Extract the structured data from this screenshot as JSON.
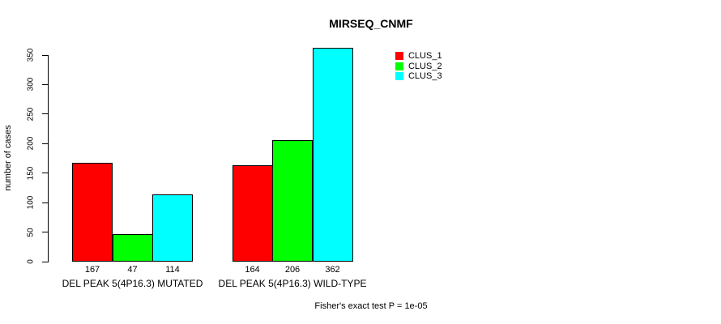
{
  "chart_data": {
    "type": "bar",
    "title": "MIRSEQ_CNMF",
    "xlabel": "",
    "ylabel": "number of cases",
    "ylim": [
      0,
      350
    ],
    "yticks": [
      0,
      50,
      100,
      150,
      200,
      250,
      300,
      350
    ],
    "grid": false,
    "legend_position": "top-right",
    "categories": [
      "DEL PEAK 5(4P16.3) MUTATED",
      "DEL PEAK 5(4P16.3) WILD-TYPE"
    ],
    "series": [
      {
        "name": "CLUS_1",
        "color": "#ff0000",
        "values": [
          167,
          164
        ]
      },
      {
        "name": "CLUS_2",
        "color": "#00ff00",
        "values": [
          47,
          206
        ]
      },
      {
        "name": "CLUS_3",
        "color": "#00ffff",
        "values": [
          114,
          362
        ]
      }
    ],
    "annotation": "Fisher's exact test P = 1e-05",
    "colors": {
      "axis": "#000000",
      "text": "#000000",
      "background": "#ffffff"
    }
  }
}
